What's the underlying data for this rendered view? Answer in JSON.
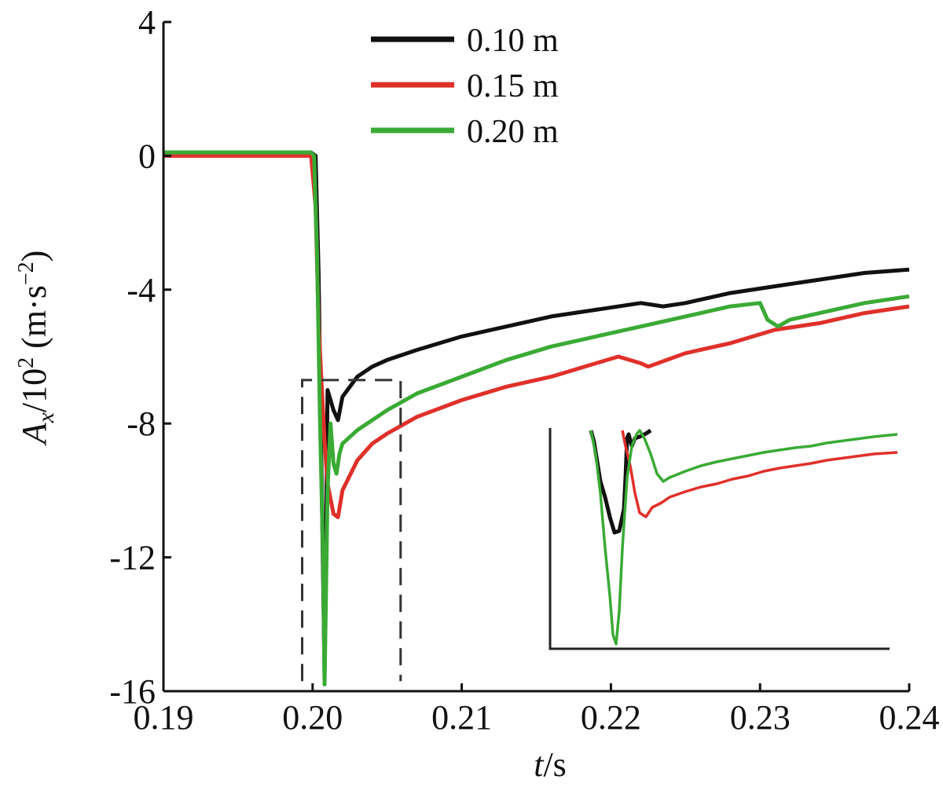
{
  "chart_data": {
    "type": "line",
    "title": "",
    "xlabel": {
      "var": "t",
      "unit": "/s"
    },
    "ylabel": {
      "var": "A",
      "sub": "x",
      "mid": "/10",
      "sup": "2",
      "unit_pre": " (m·s",
      "unit_sup": "−2",
      "unit_post": ")"
    },
    "xlim": [
      0.19,
      0.24
    ],
    "ylim": [
      -16,
      4
    ],
    "xticks": [
      0.19,
      0.2,
      0.21,
      0.22,
      0.23,
      0.24
    ],
    "xtick_labels": [
      "0.19",
      "0.20",
      "0.21",
      "0.22",
      "0.23",
      "0.24"
    ],
    "yticks": [
      4,
      0,
      -4,
      -8,
      -12,
      -16
    ],
    "ytick_labels": [
      "4",
      "0",
      "-4",
      "-8",
      "-12",
      "-16"
    ],
    "grid": false,
    "legend_position": "top-center",
    "series": [
      {
        "name": "0.10 m",
        "color": "#111111",
        "x": [
          0.19,
          0.1999,
          0.2002,
          0.2004,
          0.2006,
          0.2008,
          0.201,
          0.2014,
          0.2017,
          0.202,
          0.203,
          0.204,
          0.205,
          0.207,
          0.21,
          0.213,
          0.216,
          0.219,
          0.222,
          0.2235,
          0.225,
          0.228,
          0.231,
          0.234,
          0.237,
          0.24
        ],
        "y": [
          0.1,
          0.1,
          0.0,
          -3.5,
          -9.5,
          -15.5,
          -7.0,
          -7.6,
          -7.9,
          -7.2,
          -6.6,
          -6.3,
          -6.1,
          -5.8,
          -5.4,
          -5.1,
          -4.8,
          -4.6,
          -4.4,
          -4.5,
          -4.4,
          -4.1,
          -3.9,
          -3.7,
          -3.5,
          -3.4
        ]
      },
      {
        "name": "0.15 m",
        "color": "#e0302a",
        "x": [
          0.19,
          0.1999,
          0.2002,
          0.2004,
          0.2006,
          0.2008,
          0.201,
          0.2014,
          0.2017,
          0.202,
          0.203,
          0.204,
          0.205,
          0.207,
          0.21,
          0.213,
          0.216,
          0.219,
          0.2205,
          0.222,
          0.2225,
          0.225,
          0.228,
          0.231,
          0.234,
          0.237,
          0.24
        ],
        "y": [
          0.0,
          0.0,
          -1.5,
          -5.0,
          -6.8,
          -8.5,
          -9.8,
          -10.7,
          -10.8,
          -10.0,
          -9.1,
          -8.6,
          -8.3,
          -7.8,
          -7.3,
          -6.9,
          -6.6,
          -6.2,
          -6.0,
          -6.2,
          -6.3,
          -5.9,
          -5.6,
          -5.2,
          -5.0,
          -4.7,
          -4.5
        ]
      },
      {
        "name": "0.20 m",
        "color": "#3aaa35",
        "x": [
          0.19,
          0.1999,
          0.2001,
          0.2003,
          0.2005,
          0.2007,
          0.2008,
          0.2009,
          0.201,
          0.2012,
          0.2014,
          0.2016,
          0.2018,
          0.202,
          0.203,
          0.204,
          0.205,
          0.207,
          0.21,
          0.213,
          0.216,
          0.219,
          0.222,
          0.225,
          0.228,
          0.23,
          0.2305,
          0.2312,
          0.232,
          0.234,
          0.237,
          0.24
        ],
        "y": [
          0.1,
          0.1,
          0.0,
          -3.0,
          -8.0,
          -12.0,
          -15.8,
          -13.0,
          -10.0,
          -8.0,
          -9.2,
          -9.5,
          -8.9,
          -8.6,
          -8.2,
          -7.9,
          -7.6,
          -7.1,
          -6.6,
          -6.1,
          -5.7,
          -5.4,
          -5.1,
          -4.8,
          -4.5,
          -4.4,
          -4.9,
          -5.1,
          -4.9,
          -4.7,
          -4.4,
          -4.2
        ]
      }
    ],
    "highlight_box": {
      "x": [
        0.1993,
        0.2059
      ],
      "y": [
        -15.7,
        -6.7
      ],
      "style": "dashed"
    },
    "inset": {
      "description_free": true,
      "series": [
        {
          "name": "0.10 m",
          "color": "#111111",
          "x": [
            0,
            4,
            8,
            12,
            18,
            24,
            30,
            36,
            42,
            44,
            46,
            48,
            52,
            56,
            62,
            70,
            76
          ],
          "y": [
            0,
            15,
            40,
            65,
            85,
            110,
            130,
            128,
            100,
            60,
            10,
            5,
            20,
            10,
            8,
            4,
            0
          ]
        },
        {
          "name": "0.15 m",
          "color": "#e0302a",
          "x": [
            40,
            44,
            50,
            56,
            62,
            70,
            78,
            90,
            100,
            120,
            140,
            160,
            180,
            200,
            220,
            240,
            260,
            280,
            300,
            330,
            360,
            390
          ],
          "y": [
            0,
            20,
            45,
            80,
            105,
            110,
            98,
            92,
            85,
            78,
            72,
            68,
            62,
            58,
            52,
            48,
            45,
            42,
            38,
            34,
            30,
            28
          ]
        },
        {
          "name": "0.20 m",
          "color": "#3aaa35",
          "x": [
            0,
            6,
            12,
            18,
            24,
            28,
            32,
            36,
            40,
            46,
            52,
            58,
            62,
            68,
            76,
            84,
            92,
            100,
            120,
            140,
            160,
            180,
            200,
            220,
            240,
            260,
            280,
            300,
            330,
            360,
            390
          ],
          "y": [
            0,
            30,
            80,
            150,
            210,
            260,
            272,
            230,
            150,
            60,
            20,
            5,
            0,
            10,
            30,
            55,
            65,
            60,
            52,
            45,
            40,
            36,
            32,
            28,
            25,
            22,
            20,
            16,
            12,
            8,
            5
          ]
        }
      ]
    }
  }
}
